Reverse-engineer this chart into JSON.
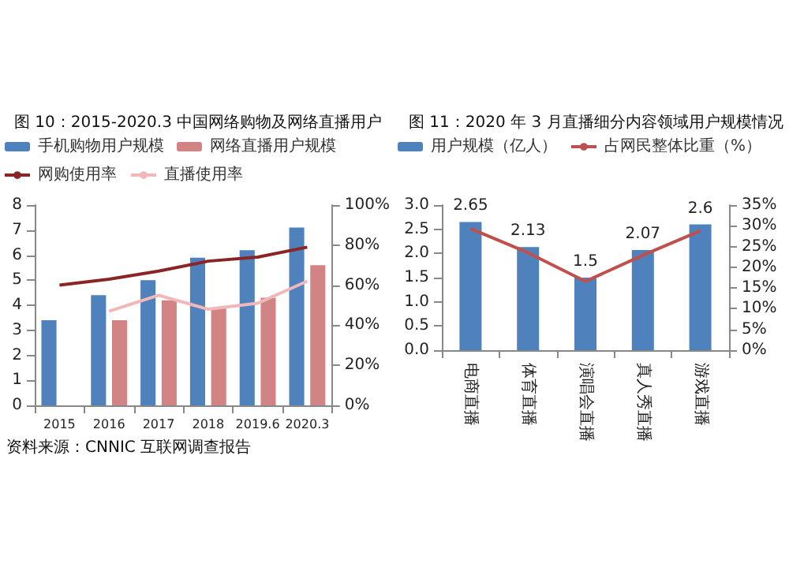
{
  "chart_data": [
    {
      "type": "bar",
      "title": "图 10：2015-2020.3 中国网络购物及网络直播用户",
      "categories": [
        "2015",
        "2016",
        "2017",
        "2018",
        "2019.6",
        "2020.3"
      ],
      "series": [
        {
          "name": "手机购物用户规模",
          "color": "#4f81bd",
          "values": [
            3.4,
            4.4,
            5.0,
            5.9,
            6.2,
            7.1
          ]
        },
        {
          "name": "网络直播用户规模",
          "color": "#d28384",
          "values": [
            null,
            3.4,
            4.2,
            3.9,
            4.3,
            5.6
          ]
        },
        {
          "name": "网购使用率",
          "type": "line",
          "axis": "y2",
          "color": "#8b2525",
          "values": [
            60,
            63,
            67,
            72,
            74,
            79
          ]
        },
        {
          "name": "直播使用率",
          "type": "line",
          "axis": "y2",
          "color": "#f0b8b8",
          "values": [
            null,
            47,
            55,
            48,
            51,
            62
          ]
        }
      ],
      "ylim": [
        0,
        8
      ],
      "yticks": [
        0,
        1,
        2,
        3,
        4,
        5,
        6,
        7,
        8
      ],
      "y2lim": [
        0,
        100
      ],
      "y2ticks": [
        {
          "value": 0,
          "label": "0%"
        },
        {
          "value": 20,
          "label": "20%"
        },
        {
          "value": 40,
          "label": "40%"
        },
        {
          "value": 60,
          "label": "60%"
        },
        {
          "value": 80,
          "label": "80%"
        },
        {
          "value": 100,
          "label": "100%"
        }
      ],
      "legend": "top",
      "marker": "none",
      "annotations": [
        "资料来源：CNNIC 互联网调查报告"
      ]
    },
    {
      "type": "bar",
      "title": "图 11：2020 年 3 月直播细分内容领域用户规模情况",
      "categories": [
        "电商直播",
        "体育直播",
        "演唱会直播",
        "真人秀直播",
        "游戏直播"
      ],
      "series": [
        {
          "name": "用户规模（亿人）",
          "color": "#4f81bd",
          "values": [
            2.65,
            2.13,
            1.5,
            2.07,
            2.6
          ],
          "value_labels": [
            "2.65",
            "2.13",
            "1.5",
            "2.07",
            "2.6"
          ]
        },
        {
          "name": "占网民整体比重（%）",
          "type": "line",
          "axis": "y2",
          "color": "#c0504d",
          "values": [
            29.3,
            23.5,
            16.6,
            22.9,
            28.8
          ]
        }
      ],
      "ylim": [
        0,
        3
      ],
      "yticks": [
        {
          "value": 0,
          "label": "0.0"
        },
        {
          "value": 0.5,
          "label": "0.5"
        },
        {
          "value": 1,
          "label": "1.0"
        },
        {
          "value": 1.5,
          "label": "1.5"
        },
        {
          "value": 2,
          "label": "2.0"
        },
        {
          "value": 2.5,
          "label": "2.5"
        },
        {
          "value": 3,
          "label": "3.0"
        }
      ],
      "y2lim": [
        0,
        35
      ],
      "y2ticks": [
        {
          "value": 0,
          "label": "0%"
        },
        {
          "value": 5,
          "label": "5%"
        },
        {
          "value": 10,
          "label": "10%"
        },
        {
          "value": 15,
          "label": "15%"
        },
        {
          "value": 20,
          "label": "20%"
        },
        {
          "value": 25,
          "label": "25%"
        },
        {
          "value": 30,
          "label": "30%"
        },
        {
          "value": 35,
          "label": "35%"
        }
      ],
      "legend": "top",
      "marker": "none"
    }
  ]
}
